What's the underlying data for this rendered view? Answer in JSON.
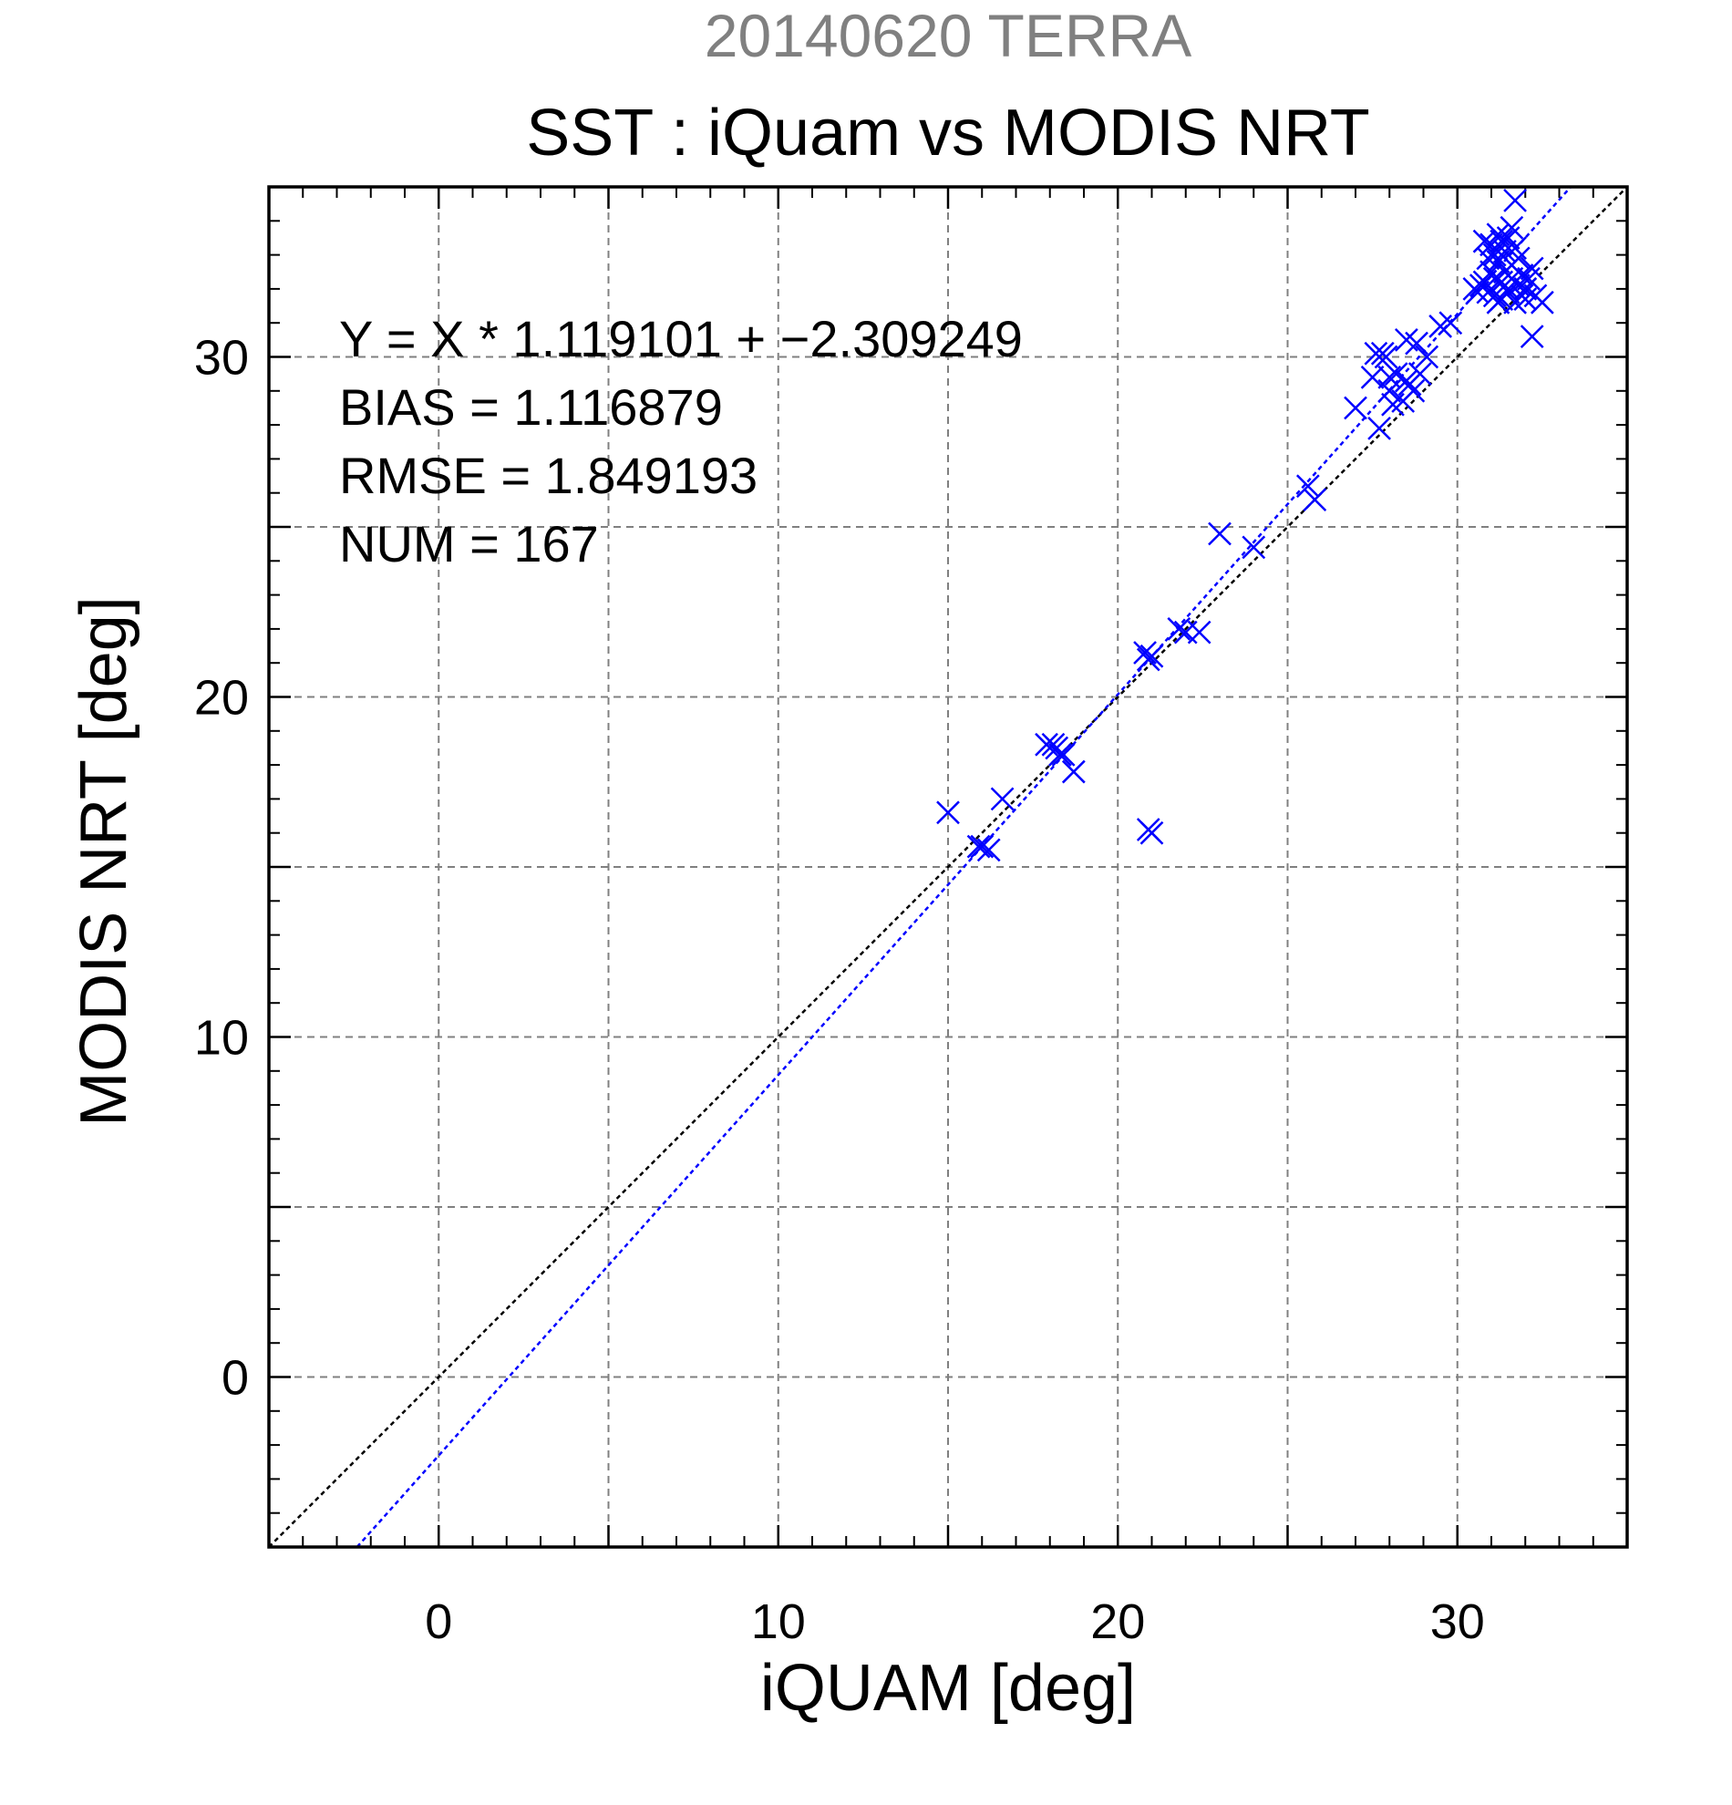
{
  "chart_data": {
    "type": "scatter",
    "suptitle": "20140620 TERRA",
    "title": "SST : iQuam vs MODIS NRT",
    "xlabel": "iQUAM [deg]",
    "ylabel": "MODIS NRT [deg]",
    "xlim": [
      -5,
      35
    ],
    "ylim": [
      -5,
      35
    ],
    "grid": true,
    "x_ticks": [
      0,
      10,
      20,
      30
    ],
    "y_ticks": [
      0,
      10,
      20,
      30
    ],
    "x_tick_labels": [
      "0",
      "10",
      "20",
      "30"
    ],
    "y_tick_labels": [
      "0",
      "10",
      "20",
      "30"
    ],
    "grid_step": 5,
    "minor_step": 1,
    "stats": [
      "Y = X * 1.119101 + −2.309249",
      "BIAS = 1.116879",
      "RMSE = 1.849193",
      "NUM = 167"
    ],
    "regression": {
      "slope": 1.119101,
      "intercept": -2.309249
    },
    "colors": {
      "points": "#0000ff",
      "fit_line": "#0000ff",
      "identity_line": "#000000",
      "suptitle": "#808080"
    },
    "points": [
      [
        15.0,
        16.6
      ],
      [
        15.9,
        15.6
      ],
      [
        16.0,
        15.6
      ],
      [
        16.2,
        15.5
      ],
      [
        16.6,
        17.0
      ],
      [
        17.9,
        18.6
      ],
      [
        18.1,
        18.6
      ],
      [
        18.2,
        18.5
      ],
      [
        18.3,
        18.3
      ],
      [
        18.4,
        18.3
      ],
      [
        18.7,
        17.8
      ],
      [
        20.8,
        21.3
      ],
      [
        20.9,
        21.1
      ],
      [
        21.0,
        21.2
      ],
      [
        20.9,
        16.1
      ],
      [
        21.0,
        16.0
      ],
      [
        21.8,
        22.0
      ],
      [
        22.0,
        21.9
      ],
      [
        22.4,
        21.9
      ],
      [
        23.0,
        24.8
      ],
      [
        24.0,
        24.4
      ],
      [
        25.6,
        26.2
      ],
      [
        25.8,
        25.8
      ],
      [
        27.0,
        28.5
      ],
      [
        27.5,
        29.4
      ],
      [
        27.6,
        30.1
      ],
      [
        27.7,
        27.9
      ],
      [
        27.8,
        30.1
      ],
      [
        27.9,
        30.0
      ],
      [
        28.0,
        29.4
      ],
      [
        28.0,
        29.0
      ],
      [
        28.1,
        28.6
      ],
      [
        28.2,
        29.5
      ],
      [
        28.4,
        28.7
      ],
      [
        28.5,
        29.3
      ],
      [
        28.5,
        30.5
      ],
      [
        28.6,
        29.2
      ],
      [
        28.7,
        29.0
      ],
      [
        28.8,
        30.4
      ],
      [
        28.9,
        29.5
      ],
      [
        29.1,
        30.0
      ],
      [
        29.5,
        30.9
      ],
      [
        29.8,
        31.0
      ],
      [
        30.5,
        32.0
      ],
      [
        30.6,
        31.9
      ],
      [
        30.7,
        32.1
      ],
      [
        30.8,
        32.2
      ],
      [
        30.9,
        31.9
      ],
      [
        31.0,
        32.5
      ],
      [
        31.0,
        33.3
      ],
      [
        31.1,
        33.0
      ],
      [
        31.1,
        31.8
      ],
      [
        31.2,
        32.8
      ],
      [
        31.2,
        33.6
      ],
      [
        31.3,
        32.2
      ],
      [
        31.3,
        31.7
      ],
      [
        31.4,
        33.1
      ],
      [
        31.4,
        32.5
      ],
      [
        31.5,
        33.5
      ],
      [
        31.5,
        32.0
      ],
      [
        31.6,
        33.8
      ],
      [
        31.6,
        32.7
      ],
      [
        31.7,
        31.6
      ],
      [
        31.7,
        34.6
      ],
      [
        31.8,
        32.9
      ],
      [
        31.8,
        32.1
      ],
      [
        31.9,
        32.4
      ],
      [
        32.0,
        32.0
      ],
      [
        32.0,
        31.7
      ],
      [
        32.1,
        32.3
      ],
      [
        32.2,
        32.6
      ],
      [
        32.2,
        30.6
      ],
      [
        32.3,
        31.8
      ],
      [
        32.5,
        31.6
      ],
      [
        30.9,
        32.9
      ],
      [
        31.1,
        32.3
      ],
      [
        31.3,
        33.4
      ],
      [
        31.5,
        31.9
      ],
      [
        31.7,
        33.2
      ],
      [
        31.9,
        31.8
      ],
      [
        30.8,
        33.4
      ],
      [
        31.2,
        31.6
      ],
      [
        31.6,
        32.3
      ]
    ]
  }
}
